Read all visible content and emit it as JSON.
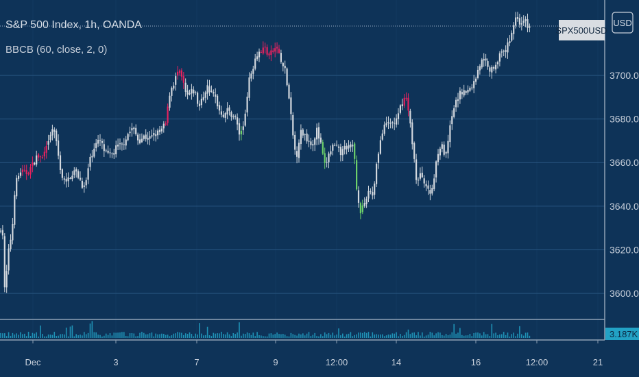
{
  "colors": {
    "background": "#0e3358",
    "grid": "#2a5883",
    "candle": "#d3d8de",
    "candle_highlight_up": "#e5225f",
    "candle_highlight_down": "#6ed26a",
    "volume": "#22a2c5",
    "axis_text": "#c9d1dc",
    "last_price_line": "#9fb2c8"
  },
  "header": {
    "title": "S&P 500 Index, 1h, OANDA",
    "indicator": "BBCB (60, close, 2, 0)"
  },
  "price_axis": {
    "currency_button": "USD",
    "symbol_label": "SPX500USD",
    "volume_label": "3.187K"
  },
  "chart_data": {
    "type": "candlestick",
    "title": "S&P 500 Index, 1h, OANDA",
    "indicator": "BBCB (60, close, 2, 0)",
    "symbol": "SPX500USD",
    "currency": "USD",
    "ylim": [
      3590,
      3740
    ],
    "y_ticks": [
      3600.0,
      3620.0,
      3640.0,
      3660.0,
      3680.0,
      3700.0
    ],
    "x_ticks": [
      "Dec",
      "3",
      "7",
      "9",
      "12:00",
      "14",
      "16",
      "12:00",
      "21"
    ],
    "last_price": 3722,
    "last_volume": "3.187K",
    "grid": true,
    "price_path": [
      [
        0,
        3628
      ],
      [
        3,
        3635
      ],
      [
        7,
        3600
      ],
      [
        12,
        3618
      ],
      [
        18,
        3630
      ],
      [
        22,
        3650
      ],
      [
        30,
        3656
      ],
      [
        38,
        3655
      ],
      [
        46,
        3658
      ],
      [
        54,
        3663
      ],
      [
        62,
        3662
      ],
      [
        70,
        3668
      ],
      [
        78,
        3677
      ],
      [
        84,
        3665
      ],
      [
        90,
        3654
      ],
      [
        96,
        3650
      ],
      [
        102,
        3654
      ],
      [
        108,
        3656
      ],
      [
        114,
        3654
      ],
      [
        120,
        3650
      ],
      [
        124,
        3648
      ],
      [
        130,
        3660
      ],
      [
        138,
        3668
      ],
      [
        146,
        3670
      ],
      [
        154,
        3664
      ],
      [
        162,
        3663
      ],
      [
        170,
        3667
      ],
      [
        178,
        3668
      ],
      [
        186,
        3673
      ],
      [
        194,
        3676
      ],
      [
        202,
        3670
      ],
      [
        210,
        3672
      ],
      [
        218,
        3671
      ],
      [
        226,
        3673
      ],
      [
        234,
        3674
      ],
      [
        242,
        3678
      ],
      [
        248,
        3693
      ],
      [
        254,
        3697
      ],
      [
        260,
        3702
      ],
      [
        266,
        3698
      ],
      [
        272,
        3690
      ],
      [
        278,
        3692
      ],
      [
        284,
        3693
      ],
      [
        290,
        3685
      ],
      [
        296,
        3690
      ],
      [
        302,
        3695
      ],
      [
        308,
        3692
      ],
      [
        314,
        3690
      ],
      [
        320,
        3684
      ],
      [
        326,
        3682
      ],
      [
        332,
        3684
      ],
      [
        338,
        3682
      ],
      [
        344,
        3680
      ],
      [
        350,
        3672
      ],
      [
        356,
        3678
      ],
      [
        362,
        3696
      ],
      [
        368,
        3703
      ],
      [
        374,
        3710
      ],
      [
        380,
        3711
      ],
      [
        386,
        3713
      ],
      [
        392,
        3709
      ],
      [
        398,
        3711
      ],
      [
        404,
        3713
      ],
      [
        410,
        3706
      ],
      [
        416,
        3702
      ],
      [
        422,
        3688
      ],
      [
        428,
        3670
      ],
      [
        432,
        3662
      ],
      [
        438,
        3674
      ],
      [
        444,
        3673
      ],
      [
        450,
        3670
      ],
      [
        456,
        3669
      ],
      [
        462,
        3675
      ],
      [
        468,
        3668
      ],
      [
        474,
        3658
      ],
      [
        480,
        3664
      ],
      [
        486,
        3668
      ],
      [
        492,
        3666
      ],
      [
        498,
        3664
      ],
      [
        504,
        3668
      ],
      [
        510,
        3666
      ],
      [
        516,
        3668
      ],
      [
        520,
        3648
      ],
      [
        526,
        3638
      ],
      [
        532,
        3640
      ],
      [
        538,
        3648
      ],
      [
        544,
        3645
      ],
      [
        550,
        3662
      ],
      [
        556,
        3672
      ],
      [
        562,
        3677
      ],
      [
        568,
        3678
      ],
      [
        574,
        3678
      ],
      [
        580,
        3680
      ],
      [
        586,
        3688
      ],
      [
        592,
        3690
      ],
      [
        596,
        3683
      ],
      [
        602,
        3668
      ],
      [
        608,
        3650
      ],
      [
        614,
        3655
      ],
      [
        620,
        3651
      ],
      [
        626,
        3645
      ],
      [
        632,
        3650
      ],
      [
        638,
        3665
      ],
      [
        644,
        3668
      ],
      [
        650,
        3662
      ],
      [
        656,
        3675
      ],
      [
        662,
        3685
      ],
      [
        668,
        3690
      ],
      [
        674,
        3693
      ],
      [
        680,
        3692
      ],
      [
        686,
        3694
      ],
      [
        692,
        3697
      ],
      [
        698,
        3704
      ],
      [
        704,
        3707
      ],
      [
        710,
        3706
      ],
      [
        716,
        3702
      ],
      [
        722,
        3705
      ],
      [
        728,
        3709
      ],
      [
        734,
        3710
      ],
      [
        740,
        3713
      ],
      [
        746,
        3720
      ],
      [
        752,
        3727
      ],
      [
        758,
        3724
      ],
      [
        764,
        3726
      ],
      [
        770,
        3722
      ],
      [
        774,
        3722
      ]
    ],
    "highlight_up_ranges": [
      [
        32,
        48
      ],
      [
        56,
        68
      ],
      [
        240,
        247
      ],
      [
        258,
        268
      ],
      [
        378,
        408
      ],
      [
        588,
        598
      ]
    ],
    "highlight_down_ranges": [
      [
        349,
        354
      ],
      [
        470,
        476
      ],
      [
        516,
        522
      ],
      [
        523,
        529
      ]
    ]
  }
}
